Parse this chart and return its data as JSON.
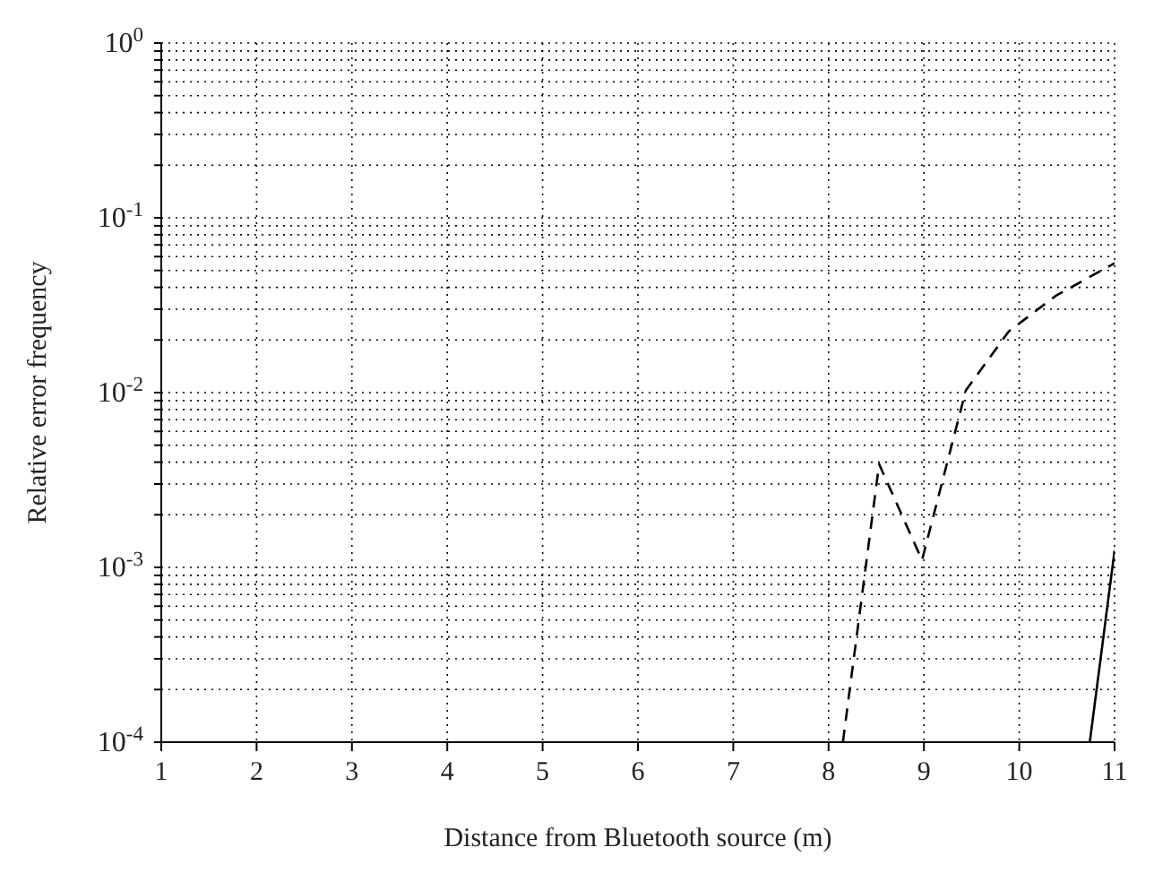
{
  "chart_data": {
    "type": "line",
    "xlabel": "Distance from Bluetooth source (m)",
    "ylabel": "Relative error frequency",
    "log": "y",
    "grid": true,
    "legend": false,
    "marker": "none",
    "xlim": [
      1,
      11
    ],
    "xticks": [
      1,
      2,
      3,
      4,
      5,
      6,
      7,
      8,
      9,
      10,
      11
    ],
    "ylim": [
      0.0001,
      1
    ],
    "yticks": [
      {
        "value": 0.0001,
        "label": "10$^{-4}$"
      },
      {
        "value": 0.0002,
        "label": null
      },
      {
        "value": 0.0003,
        "label": null
      },
      {
        "value": 0.0004,
        "label": null
      },
      {
        "value": 0.0005,
        "label": null
      },
      {
        "value": 0.0006,
        "label": null
      },
      {
        "value": 0.0007,
        "label": null
      },
      {
        "value": 0.0008,
        "label": null
      },
      {
        "value": 0.0009,
        "label": null
      },
      {
        "value": 0.001,
        "label": "10$^{-3}$"
      },
      {
        "value": 0.002,
        "label": null
      },
      {
        "value": 0.003,
        "label": null
      },
      {
        "value": 0.004,
        "label": null
      },
      {
        "value": 0.005,
        "label": null
      },
      {
        "value": 0.006,
        "label": null
      },
      {
        "value": 0.007,
        "label": null
      },
      {
        "value": 0.008,
        "label": null
      },
      {
        "value": 0.009,
        "label": null
      },
      {
        "value": 0.01,
        "label": "10$^{-2}$"
      },
      {
        "value": 0.02,
        "label": null
      },
      {
        "value": 0.03,
        "label": null
      },
      {
        "value": 0.04,
        "label": null
      },
      {
        "value": 0.05,
        "label": null
      },
      {
        "value": 0.06,
        "label": null
      },
      {
        "value": 0.07,
        "label": null
      },
      {
        "value": 0.08,
        "label": null
      },
      {
        "value": 0.09,
        "label": null
      },
      {
        "value": 0.1,
        "label": "10$^{-1}$"
      },
      {
        "value": 0.2,
        "label": null
      },
      {
        "value": 0.3,
        "label": null
      },
      {
        "value": 0.4,
        "label": null
      },
      {
        "value": 0.5,
        "label": null
      },
      {
        "value": 0.6,
        "label": null
      },
      {
        "value": 0.7,
        "label": null
      },
      {
        "value": 0.8,
        "label": null
      },
      {
        "value": 0.9,
        "label": null
      },
      {
        "value": 1,
        "label": "10$^{0}$"
      }
    ],
    "series": [
      {
        "color": "#000000",
        "line_style": "dashed",
        "x": [
          8.15,
          8.53,
          8.98,
          9.44,
          9.89,
          10.39,
          11
        ],
        "values": [
          0.0001,
          0.0039,
          0.0011,
          0.0103,
          0.0224,
          0.036,
          0.055
        ]
      },
      {
        "color": "#000000",
        "line_style": "solid",
        "x": [
          10.74,
          11
        ],
        "values": [
          0.0001,
          0.00125
        ]
      }
    ]
  }
}
